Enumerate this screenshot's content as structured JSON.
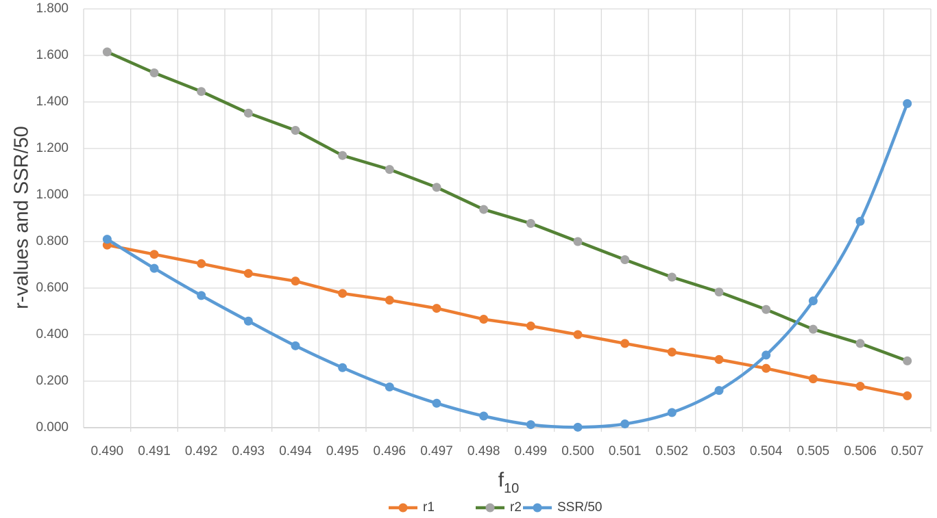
{
  "chart_data": {
    "type": "line",
    "title": "",
    "xlabel_main": "f",
    "xlabel_sub": "10",
    "ylabel": "r-values and SSR/50",
    "ylim": [
      0,
      1.8
    ],
    "yticks": [
      0,
      0.2,
      0.4,
      0.6,
      0.8,
      1.0,
      1.2,
      1.4,
      1.6,
      1.8
    ],
    "ytick_labels": [
      "0.000",
      "0.200",
      "0.400",
      "0.600",
      "0.800",
      "1.000",
      "1.200",
      "1.400",
      "1.600",
      "1.800"
    ],
    "categories": [
      "0.490",
      "0.491",
      "0.492",
      "0.493",
      "0.494",
      "0.495",
      "0.496",
      "0.497",
      "0.498",
      "0.499",
      "0.500",
      "0.501",
      "0.502",
      "0.503",
      "0.504",
      "0.505",
      "0.506",
      "0.507"
    ],
    "grid": true,
    "legend_position": "bottom",
    "series": [
      {
        "name": "r1",
        "line_color": "#ED7D31",
        "marker_color": "#ED7D31",
        "smooth": false,
        "values": [
          0.785,
          0.745,
          0.705,
          0.663,
          0.63,
          0.577,
          0.548,
          0.513,
          0.466,
          0.437,
          0.4,
          0.362,
          0.325,
          0.293,
          0.255,
          0.21,
          0.178,
          0.137
        ]
      },
      {
        "name": "r2",
        "line_color": "#548235",
        "marker_color": "#A5A5A5",
        "smooth": false,
        "values": [
          1.615,
          1.525,
          1.445,
          1.352,
          1.278,
          1.17,
          1.11,
          1.033,
          0.938,
          0.878,
          0.8,
          0.722,
          0.647,
          0.583,
          0.508,
          0.423,
          0.362,
          0.287
        ]
      },
      {
        "name": "SSR/50",
        "line_color": "#5B9BD5",
        "marker_color": "#5B9BD5",
        "smooth": true,
        "values": [
          0.81,
          0.685,
          0.568,
          0.458,
          0.352,
          0.258,
          0.175,
          0.105,
          0.05,
          0.013,
          0.002,
          0.016,
          0.065,
          0.16,
          0.312,
          0.545,
          0.887,
          1.393
        ]
      }
    ]
  }
}
